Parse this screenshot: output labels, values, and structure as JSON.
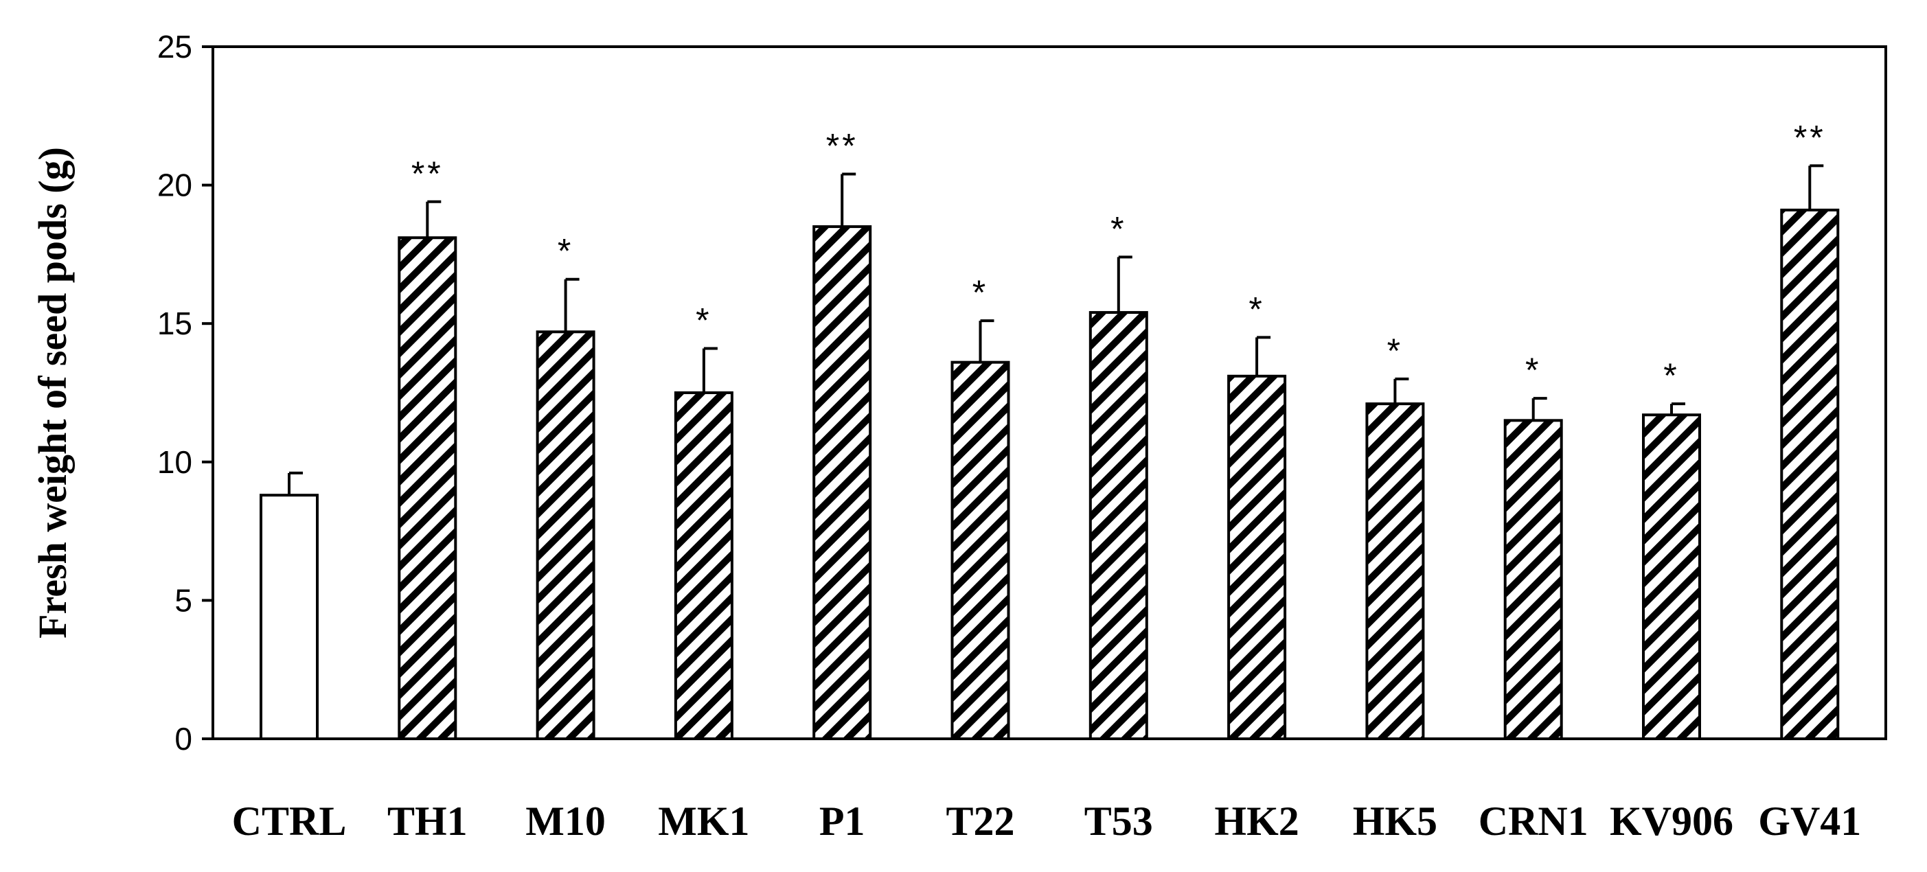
{
  "chart_data": {
    "type": "bar",
    "categories": [
      "CTRL",
      "TH1",
      "M10",
      "MK1",
      "P1",
      "T22",
      "T53",
      "HK2",
      "HK5",
      "CRN1",
      "KV906",
      "GV41"
    ],
    "values": [
      8.8,
      18.1,
      14.7,
      12.5,
      18.5,
      13.6,
      15.4,
      13.1,
      12.1,
      11.5,
      11.7,
      19.1
    ],
    "errors": [
      0.8,
      1.3,
      1.9,
      1.6,
      1.9,
      1.5,
      2.0,
      1.4,
      0.9,
      0.8,
      0.4,
      1.6
    ],
    "significance": [
      "",
      "**",
      "*",
      "*",
      "**",
      "*",
      "*",
      "*",
      "*",
      "*",
      "*",
      "**"
    ],
    "fills": [
      "plain",
      "hatched",
      "hatched",
      "hatched",
      "hatched",
      "hatched",
      "hatched",
      "hatched",
      "hatched",
      "hatched",
      "hatched",
      "hatched"
    ],
    "ylabel": "Fresh weight of seed pods (g)",
    "ylim": [
      0,
      25
    ],
    "yticks": [
      0,
      5,
      10,
      15,
      20,
      25
    ],
    "grid": false,
    "colors": {
      "bar_stroke": "#000000",
      "hatch": "#000000",
      "plain_fill": "#ffffff",
      "axis": "#000000"
    }
  }
}
